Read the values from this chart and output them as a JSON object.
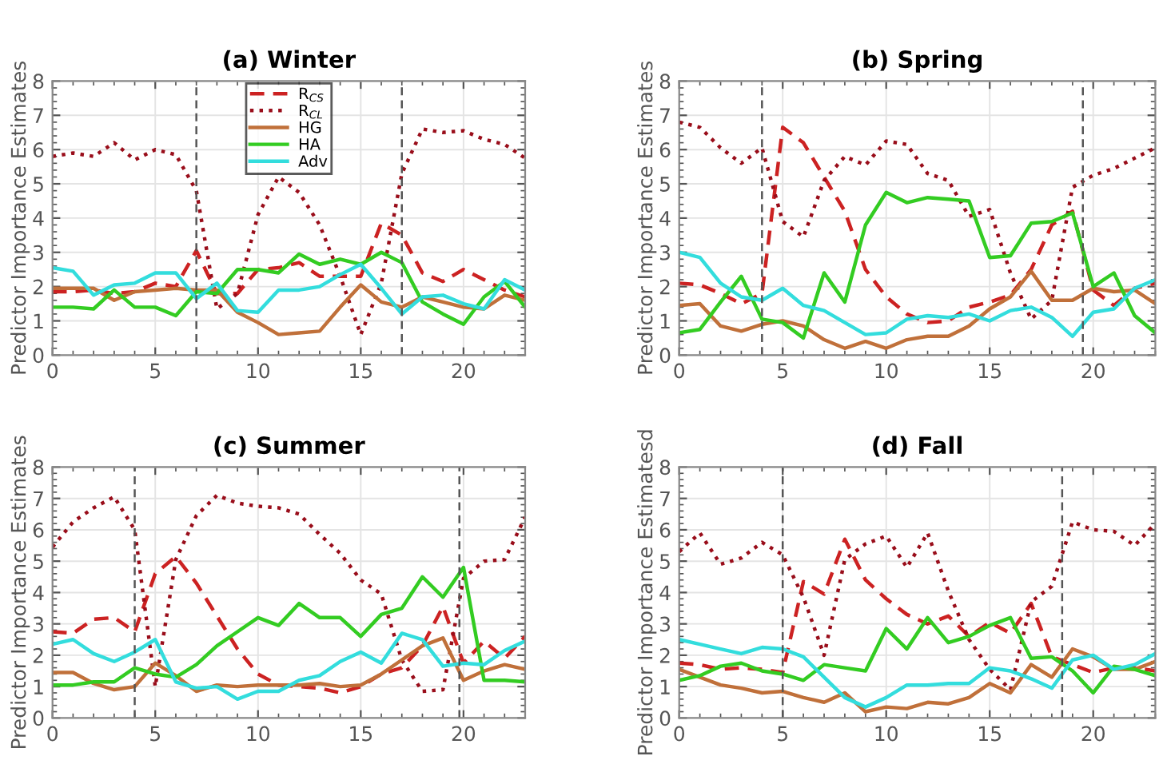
{
  "chart_data": [
    {
      "type": "line",
      "title": "(a) Winter",
      "ylabel": "Predictor Importance Estimates",
      "x": [
        0,
        1,
        2,
        3,
        4,
        5,
        6,
        7,
        8,
        9,
        10,
        11,
        12,
        13,
        14,
        15,
        16,
        17,
        18,
        19,
        20,
        21,
        22,
        23
      ],
      "xlim": [
        0,
        23
      ],
      "xticks": [
        0,
        5,
        10,
        15,
        20
      ],
      "ylim": [
        0,
        8
      ],
      "yticks": [
        0,
        1,
        2,
        3,
        4,
        5,
        6,
        7,
        8
      ],
      "grid": true,
      "legend": "top",
      "ref_lines": [
        {
          "axis": "x",
          "value": 7,
          "color": "#555555",
          "line_style": "dashed"
        },
        {
          "axis": "x",
          "value": 17,
          "color": "#555555",
          "line_style": "dashed"
        }
      ],
      "series": [
        {
          "name": "R$_{CS}$",
          "color": "#cc2222",
          "line_style": "dashed",
          "values": [
            1.85,
            1.85,
            1.9,
            1.8,
            1.85,
            2.1,
            2.0,
            3.05,
            1.8,
            1.8,
            2.5,
            2.55,
            2.7,
            2.3,
            2.3,
            2.3,
            3.85,
            3.5,
            2.4,
            2.15,
            2.5,
            2.2,
            1.9,
            1.7
          ]
        },
        {
          "name": "R$_{CL}$",
          "color": "#990d1a",
          "line_style": "dotted",
          "values": [
            5.8,
            5.9,
            5.8,
            6.2,
            5.7,
            6.0,
            5.85,
            4.8,
            1.35,
            1.8,
            4.1,
            5.2,
            4.75,
            3.8,
            2.3,
            0.6,
            2.1,
            5.3,
            6.6,
            6.5,
            6.55,
            6.3,
            6.15,
            5.75
          ]
        },
        {
          "name": "HG",
          "color": "#c0703a",
          "line_style": "solid",
          "values": [
            1.95,
            1.95,
            1.95,
            1.6,
            1.85,
            1.9,
            1.95,
            1.9,
            1.9,
            1.25,
            0.95,
            0.6,
            0.65,
            0.7,
            1.4,
            2.05,
            1.55,
            1.4,
            1.7,
            1.55,
            1.4,
            1.35,
            1.75,
            1.6
          ]
        },
        {
          "name": "HA",
          "color": "#33cc22",
          "line_style": "solid",
          "values": [
            1.4,
            1.4,
            1.35,
            1.9,
            1.4,
            1.4,
            1.15,
            1.85,
            1.8,
            2.5,
            2.5,
            2.4,
            2.95,
            2.65,
            2.8,
            2.65,
            3.0,
            2.7,
            1.55,
            1.2,
            0.9,
            1.7,
            2.15,
            1.4
          ]
        },
        {
          "name": "Adv",
          "color": "#33dddd",
          "line_style": "solid",
          "values": [
            2.55,
            2.45,
            1.75,
            2.05,
            2.1,
            2.4,
            2.4,
            1.65,
            2.1,
            1.3,
            1.25,
            1.9,
            1.9,
            2.0,
            2.35,
            2.65,
            1.95,
            1.2,
            1.7,
            1.75,
            1.5,
            1.35,
            2.2,
            1.9
          ]
        }
      ]
    },
    {
      "type": "line",
      "title": "(b) Spring",
      "ylabel": "Predictor Importance Estimates",
      "x": [
        0,
        1,
        2,
        3,
        4,
        5,
        6,
        7,
        8,
        9,
        10,
        11,
        12,
        13,
        14,
        15,
        16,
        17,
        18,
        19,
        20,
        21,
        22,
        23
      ],
      "xlim": [
        0,
        23
      ],
      "xticks": [
        0,
        5,
        10,
        15,
        20
      ],
      "ylim": [
        0,
        8
      ],
      "yticks": [
        0,
        1,
        2,
        3,
        4,
        5,
        6,
        7,
        8
      ],
      "grid": true,
      "ref_lines": [
        {
          "axis": "x",
          "value": 4,
          "color": "#555555",
          "line_style": "dashed"
        },
        {
          "axis": "x",
          "value": 19.5,
          "color": "#555555",
          "line_style": "dashed"
        }
      ],
      "series": [
        {
          "color": "#cc2222",
          "line_style": "dashed",
          "values": [
            2.1,
            2.05,
            1.8,
            1.5,
            1.8,
            6.65,
            6.2,
            5.2,
            4.2,
            2.5,
            1.7,
            1.2,
            0.95,
            1.0,
            1.4,
            1.55,
            1.75,
            2.5,
            3.8,
            4.2,
            1.9,
            1.45,
            1.95,
            2.1
          ]
        },
        {
          "color": "#990d1a",
          "line_style": "dotted",
          "values": [
            6.8,
            6.65,
            6.05,
            5.6,
            6.05,
            3.9,
            3.45,
            5.1,
            5.8,
            5.55,
            6.25,
            6.15,
            5.3,
            5.1,
            4.05,
            4.25,
            2.4,
            1.05,
            1.6,
            4.9,
            5.25,
            5.45,
            5.75,
            6.05
          ]
        },
        {
          "color": "#c0703a",
          "line_style": "solid",
          "values": [
            1.45,
            1.5,
            0.85,
            0.7,
            0.9,
            1.0,
            0.85,
            0.45,
            0.2,
            0.4,
            0.2,
            0.45,
            0.55,
            0.55,
            0.85,
            1.35,
            1.7,
            2.45,
            1.6,
            1.6,
            1.95,
            1.85,
            1.9,
            1.5
          ]
        },
        {
          "color": "#33cc22",
          "line_style": "solid",
          "values": [
            0.65,
            0.75,
            1.55,
            2.3,
            1.05,
            0.95,
            0.5,
            2.4,
            1.55,
            3.8,
            4.75,
            4.45,
            4.6,
            4.55,
            4.5,
            2.85,
            2.9,
            3.85,
            3.9,
            4.15,
            2.0,
            2.4,
            1.15,
            0.65
          ]
        },
        {
          "color": "#33dddd",
          "line_style": "solid",
          "values": [
            3.0,
            2.85,
            2.1,
            1.7,
            1.6,
            1.95,
            1.45,
            1.3,
            0.95,
            0.6,
            0.65,
            1.05,
            1.15,
            1.1,
            1.2,
            1.0,
            1.3,
            1.4,
            1.1,
            0.55,
            1.25,
            1.35,
            1.95,
            2.2
          ]
        }
      ]
    },
    {
      "type": "line",
      "title": "(c) Summer",
      "ylabel": "Predictor Importance Estimates",
      "x": [
        0,
        1,
        2,
        3,
        4,
        5,
        6,
        7,
        8,
        9,
        10,
        11,
        12,
        13,
        14,
        15,
        16,
        17,
        18,
        19,
        20,
        21,
        22,
        23
      ],
      "xlim": [
        0,
        23
      ],
      "xticks": [
        0,
        5,
        10,
        15,
        20
      ],
      "ylim": [
        0,
        8
      ],
      "yticks": [
        0,
        1,
        2,
        3,
        4,
        5,
        6,
        7,
        8
      ],
      "grid": true,
      "ref_lines": [
        {
          "axis": "x",
          "value": 4,
          "color": "#555555",
          "line_style": "dashed"
        },
        {
          "axis": "x",
          "value": 19.8,
          "color": "#555555",
          "line_style": "dashed"
        }
      ],
      "series": [
        {
          "color": "#cc2222",
          "line_style": "dashed",
          "values": [
            2.75,
            2.7,
            3.15,
            3.2,
            2.75,
            4.6,
            5.15,
            4.3,
            3.25,
            2.2,
            1.4,
            1.05,
            1.0,
            0.95,
            0.8,
            1.0,
            1.4,
            1.6,
            2.3,
            3.55,
            1.75,
            2.45,
            1.9,
            2.6
          ]
        },
        {
          "color": "#990d1a",
          "line_style": "dotted",
          "values": [
            5.45,
            6.25,
            6.7,
            7.05,
            6.0,
            1.0,
            5.05,
            6.45,
            7.1,
            6.85,
            6.75,
            6.7,
            6.5,
            5.85,
            5.25,
            4.4,
            3.95,
            1.85,
            0.85,
            0.9,
            4.45,
            5.0,
            5.05,
            6.4
          ]
        },
        {
          "color": "#c0703a",
          "line_style": "solid",
          "values": [
            1.45,
            1.45,
            1.1,
            0.9,
            1.0,
            1.75,
            1.35,
            0.85,
            1.05,
            1.0,
            1.05,
            1.05,
            1.05,
            1.1,
            1.0,
            1.05,
            1.4,
            1.85,
            2.3,
            2.55,
            1.2,
            1.5,
            1.7,
            1.55
          ]
        },
        {
          "color": "#33cc22",
          "line_style": "solid",
          "values": [
            1.05,
            1.05,
            1.15,
            1.15,
            1.6,
            1.4,
            1.3,
            1.7,
            2.3,
            2.75,
            3.2,
            2.95,
            3.65,
            3.2,
            3.2,
            2.6,
            3.3,
            3.5,
            4.5,
            3.85,
            4.8,
            1.2,
            1.2,
            1.15
          ]
        },
        {
          "color": "#33dddd",
          "line_style": "solid",
          "values": [
            2.35,
            2.5,
            2.05,
            1.8,
            2.1,
            2.5,
            1.15,
            0.95,
            1.0,
            0.6,
            0.85,
            0.85,
            1.2,
            1.35,
            1.8,
            2.1,
            1.75,
            2.7,
            2.5,
            1.65,
            1.75,
            1.7,
            2.15,
            2.45
          ]
        }
      ]
    },
    {
      "type": "line",
      "title": "(d) Fall",
      "ylabel": "Predictor Importance Estimatesd",
      "x": [
        0,
        1,
        2,
        3,
        4,
        5,
        6,
        7,
        8,
        9,
        10,
        11,
        12,
        13,
        14,
        15,
        16,
        17,
        18,
        19,
        20,
        21,
        22,
        23
      ],
      "xlim": [
        0,
        23
      ],
      "xticks": [
        0,
        5,
        10,
        15,
        20
      ],
      "ylim": [
        0,
        8
      ],
      "yticks": [
        0,
        1,
        2,
        3,
        4,
        5,
        6,
        7,
        8
      ],
      "grid": true,
      "ref_lines": [
        {
          "axis": "x",
          "value": 5,
          "color": "#555555",
          "line_style": "dashed"
        },
        {
          "axis": "x",
          "value": 18.5,
          "color": "#555555",
          "line_style": "dashed"
        }
      ],
      "series": [
        {
          "color": "#cc2222",
          "line_style": "dashed",
          "values": [
            1.75,
            1.7,
            1.55,
            1.6,
            1.55,
            1.45,
            4.35,
            3.95,
            5.7,
            4.4,
            3.8,
            3.3,
            3.0,
            3.25,
            2.6,
            3.05,
            2.7,
            3.65,
            1.95,
            1.7,
            1.45,
            1.6,
            1.6,
            1.5
          ]
        },
        {
          "color": "#990d1a",
          "line_style": "dotted",
          "values": [
            5.3,
            5.9,
            4.9,
            5.1,
            5.6,
            5.2,
            3.85,
            2.0,
            5.05,
            5.55,
            5.8,
            4.8,
            5.9,
            4.05,
            2.5,
            1.55,
            0.9,
            3.7,
            4.2,
            6.25,
            6.0,
            5.95,
            5.5,
            6.2
          ]
        },
        {
          "color": "#c0703a",
          "line_style": "solid",
          "values": [
            1.55,
            1.3,
            1.05,
            0.95,
            0.8,
            0.85,
            0.65,
            0.5,
            0.8,
            0.2,
            0.35,
            0.3,
            0.5,
            0.45,
            0.65,
            1.1,
            0.8,
            1.7,
            1.3,
            2.2,
            1.95,
            1.55,
            1.55,
            1.8
          ]
        },
        {
          "color": "#33cc22",
          "line_style": "solid",
          "values": [
            1.2,
            1.35,
            1.65,
            1.75,
            1.5,
            1.4,
            1.2,
            1.7,
            1.6,
            1.5,
            2.85,
            2.2,
            3.2,
            2.4,
            2.6,
            2.95,
            3.2,
            1.9,
            1.95,
            1.5,
            0.8,
            1.65,
            1.55,
            1.35
          ]
        },
        {
          "color": "#33dddd",
          "line_style": "solid",
          "values": [
            2.5,
            2.35,
            2.2,
            2.05,
            2.25,
            2.2,
            1.95,
            1.3,
            0.65,
            0.35,
            0.65,
            1.05,
            1.05,
            1.1,
            1.1,
            1.6,
            1.5,
            1.25,
            0.95,
            1.85,
            2.0,
            1.55,
            1.7,
            2.05
          ]
        }
      ]
    }
  ]
}
